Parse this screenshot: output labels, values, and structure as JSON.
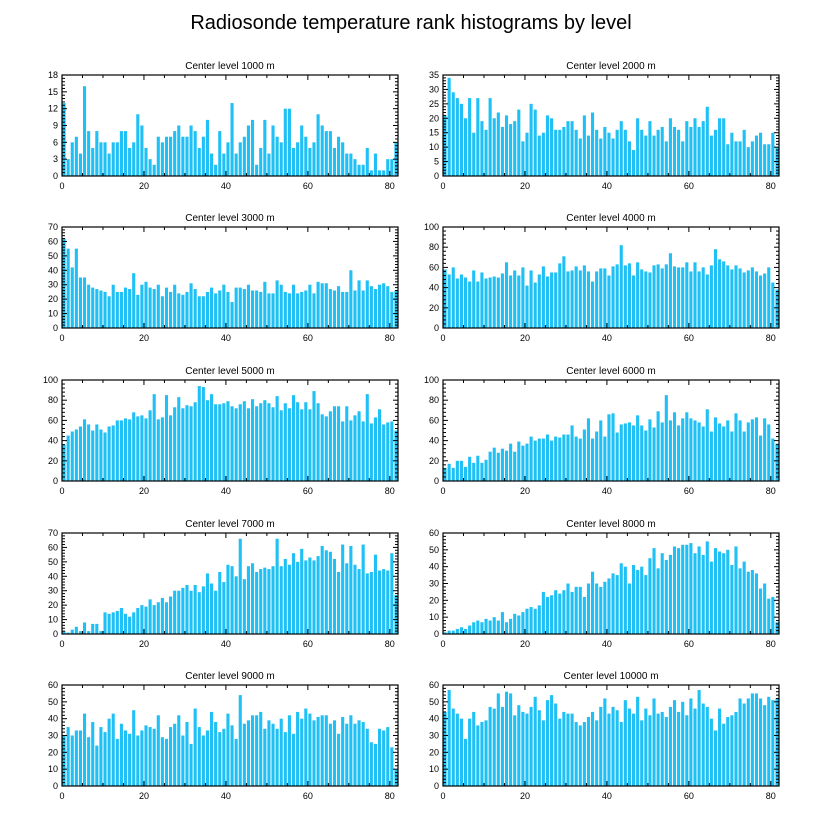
{
  "figure": {
    "title": "Radiosonde temperature rank histograms by level",
    "bar_color": "#1ec0f5",
    "frame_color": "#000000"
  },
  "chart_data": [
    {
      "type": "bar",
      "title": "Center level 1000 m",
      "xlim": [
        0,
        82
      ],
      "ylim": [
        0,
        18
      ],
      "xticks": [
        0,
        20,
        40,
        60,
        80
      ],
      "yticks": [
        0,
        3,
        6,
        9,
        12,
        15,
        18
      ],
      "values": [
        13,
        3,
        6,
        7,
        4,
        16,
        8,
        5,
        8,
        6,
        6,
        4,
        6,
        6,
        8,
        8,
        5,
        6,
        11,
        9,
        5,
        3,
        2,
        7,
        6,
        7,
        7,
        8,
        9,
        7,
        7,
        9,
        8,
        5,
        7,
        10,
        4,
        2,
        8,
        4,
        6,
        13,
        4,
        6,
        7,
        9,
        10,
        2,
        5,
        10,
        4,
        9,
        7,
        6,
        12,
        12,
        5,
        6,
        9,
        7,
        5,
        6,
        11,
        9,
        8,
        8,
        5,
        7,
        6,
        4,
        4,
        3,
        2,
        2,
        5,
        1,
        4,
        1,
        1,
        3,
        3,
        6
      ]
    },
    {
      "type": "bar",
      "title": "Center level 2000 m",
      "xlim": [
        0,
        82
      ],
      "ylim": [
        0,
        35
      ],
      "xticks": [
        0,
        20,
        40,
        60,
        80
      ],
      "yticks": [
        0,
        5,
        10,
        15,
        20,
        25,
        30,
        35
      ],
      "values": [
        21,
        34,
        29,
        27,
        25,
        20,
        27,
        15,
        27,
        19,
        16,
        27,
        20,
        22,
        17,
        21,
        18,
        19,
        23,
        12,
        15,
        25,
        23,
        14,
        15,
        21,
        20,
        16,
        16,
        17,
        19,
        19,
        16,
        13,
        21,
        14,
        22,
        16,
        13,
        17,
        15,
        13,
        16,
        19,
        16,
        12,
        9,
        20,
        16,
        14,
        19,
        14,
        16,
        17,
        12,
        20,
        17,
        16,
        12,
        19,
        17,
        20,
        17,
        19,
        24,
        14,
        16,
        20,
        20,
        11,
        15,
        12,
        12,
        16,
        10,
        12,
        14,
        15,
        11,
        11,
        15,
        10
      ]
    },
    {
      "type": "bar",
      "title": "Center level 3000 m",
      "xlim": [
        0,
        82
      ],
      "ylim": [
        0,
        70
      ],
      "xticks": [
        0,
        20,
        40,
        60,
        80
      ],
      "yticks": [
        0,
        10,
        20,
        30,
        40,
        50,
        60,
        70
      ],
      "values": [
        62,
        55,
        42,
        55,
        35,
        35,
        30,
        28,
        27,
        26,
        25,
        22,
        30,
        25,
        25,
        28,
        27,
        38,
        23,
        30,
        32,
        28,
        27,
        30,
        22,
        28,
        25,
        30,
        24,
        23,
        25,
        31,
        27,
        22,
        22,
        25,
        28,
        24,
        26,
        30,
        25,
        18,
        28,
        28,
        27,
        30,
        26,
        26,
        25,
        32,
        24,
        24,
        33,
        30,
        25,
        24,
        30,
        24,
        25,
        26,
        30,
        24,
        32,
        31,
        31,
        27,
        26,
        29,
        25,
        25,
        40,
        26,
        33,
        26,
        33,
        29,
        27,
        30,
        31,
        29,
        25,
        26
      ]
    },
    {
      "type": "bar",
      "title": "Center level 4000 m",
      "xlim": [
        0,
        82
      ],
      "ylim": [
        0,
        100
      ],
      "xticks": [
        0,
        20,
        40,
        60,
        80
      ],
      "yticks": [
        0,
        20,
        40,
        60,
        80,
        100
      ],
      "values": [
        58,
        53,
        60,
        49,
        53,
        50,
        46,
        57,
        46,
        55,
        49,
        50,
        51,
        50,
        54,
        65,
        52,
        57,
        52,
        60,
        42,
        57,
        45,
        53,
        61,
        51,
        55,
        55,
        64,
        71,
        56,
        57,
        61,
        57,
        62,
        56,
        46,
        56,
        59,
        59,
        52,
        61,
        63,
        82,
        62,
        64,
        52,
        65,
        58,
        56,
        55,
        62,
        63,
        59,
        63,
        74,
        61,
        60,
        60,
        65,
        56,
        65,
        56,
        60,
        53,
        62,
        78,
        68,
        66,
        62,
        58,
        62,
        59,
        55,
        57,
        60,
        56,
        52,
        54,
        60,
        45,
        38
      ]
    },
    {
      "type": "bar",
      "title": "Center level 5000 m",
      "xlim": [
        0,
        82
      ],
      "ylim": [
        0,
        100
      ],
      "xticks": [
        0,
        20,
        40,
        60,
        80
      ],
      "yticks": [
        0,
        20,
        40,
        60,
        80,
        100
      ],
      "values": [
        36,
        45,
        49,
        51,
        54,
        61,
        56,
        50,
        56,
        51,
        48,
        54,
        55,
        60,
        60,
        62,
        61,
        68,
        64,
        65,
        62,
        70,
        86,
        61,
        63,
        85,
        65,
        73,
        83,
        72,
        75,
        74,
        78,
        94,
        93,
        80,
        86,
        76,
        76,
        77,
        79,
        74,
        72,
        76,
        79,
        72,
        81,
        74,
        77,
        80,
        77,
        73,
        84,
        70,
        77,
        72,
        85,
        78,
        71,
        78,
        71,
        89,
        77,
        66,
        64,
        69,
        74,
        74,
        59,
        74,
        60,
        65,
        69,
        59,
        86,
        57,
        63,
        71,
        56,
        58,
        59,
        50
      ]
    },
    {
      "type": "bar",
      "title": "Center level 6000 m",
      "xlim": [
        0,
        82
      ],
      "ylim": [
        0,
        100
      ],
      "xticks": [
        0,
        20,
        40,
        60,
        80
      ],
      "yticks": [
        0,
        20,
        40,
        60,
        80,
        100
      ],
      "values": [
        13,
        17,
        13,
        20,
        20,
        14,
        24,
        18,
        25,
        18,
        21,
        29,
        33,
        28,
        32,
        30,
        37,
        29,
        39,
        35,
        37,
        44,
        40,
        42,
        42,
        46,
        40,
        44,
        43,
        46,
        46,
        55,
        44,
        42,
        51,
        62,
        42,
        49,
        60,
        44,
        66,
        67,
        48,
        56,
        57,
        58,
        55,
        65,
        55,
        50,
        61,
        53,
        69,
        58,
        85,
        60,
        68,
        55,
        62,
        68,
        62,
        60,
        58,
        54,
        71,
        49,
        63,
        57,
        54,
        60,
        49,
        67,
        60,
        49,
        58,
        61,
        63,
        45,
        62,
        56,
        42,
        37
      ]
    },
    {
      "type": "bar",
      "title": "Center level 7000 m",
      "xlim": [
        0,
        82
      ],
      "ylim": [
        0,
        70
      ],
      "xticks": [
        0,
        20,
        40,
        60,
        80
      ],
      "yticks": [
        0,
        10,
        20,
        30,
        40,
        50,
        60,
        70
      ],
      "values": [
        2,
        1,
        3,
        5,
        2,
        8,
        2,
        7,
        7,
        2,
        15,
        14,
        15,
        16,
        18,
        14,
        12,
        15,
        18,
        20,
        19,
        24,
        20,
        22,
        25,
        22,
        26,
        30,
        30,
        32,
        34,
        30,
        34,
        29,
        33,
        42,
        35,
        30,
        43,
        36,
        48,
        47,
        40,
        66,
        38,
        47,
        49,
        43,
        45,
        46,
        45,
        47,
        66,
        47,
        52,
        48,
        56,
        50,
        59,
        51,
        53,
        51,
        54,
        61,
        58,
        57,
        52,
        43,
        62,
        49,
        61,
        48,
        45,
        62,
        42,
        43,
        55,
        44,
        45,
        44,
        56,
        27
      ]
    },
    {
      "type": "bar",
      "title": "Center level 8000 m",
      "xlim": [
        0,
        82
      ],
      "ylim": [
        0,
        60
      ],
      "xticks": [
        0,
        20,
        40,
        60,
        80
      ],
      "yticks": [
        0,
        10,
        20,
        30,
        40,
        50,
        60
      ],
      "values": [
        1,
        2,
        2,
        3,
        4,
        3,
        5,
        7,
        8,
        7,
        9,
        8,
        10,
        8,
        13,
        7,
        9,
        12,
        11,
        13,
        15,
        16,
        15,
        17,
        25,
        22,
        23,
        26,
        24,
        26,
        30,
        25,
        28,
        28,
        22,
        30,
        37,
        30,
        28,
        31,
        33,
        36,
        35,
        42,
        40,
        30,
        41,
        38,
        40,
        35,
        45,
        51,
        39,
        48,
        44,
        47,
        52,
        51,
        53,
        53,
        54,
        48,
        52,
        47,
        55,
        43,
        51,
        49,
        48,
        50,
        41,
        52,
        39,
        43,
        37,
        38,
        36,
        27,
        30,
        21,
        22,
        7
      ]
    },
    {
      "type": "bar",
      "title": "Center level 9000 m",
      "xlim": [
        0,
        82
      ],
      "ylim": [
        0,
        60
      ],
      "xticks": [
        0,
        20,
        40,
        60,
        80
      ],
      "yticks": [
        0,
        10,
        20,
        30,
        40,
        50,
        60
      ],
      "values": [
        30,
        35,
        30,
        33,
        33,
        43,
        29,
        38,
        24,
        35,
        32,
        40,
        43,
        28,
        37,
        33,
        31,
        45,
        30,
        33,
        36,
        35,
        34,
        42,
        29,
        28,
        35,
        37,
        42,
        30,
        38,
        25,
        46,
        35,
        30,
        33,
        44,
        38,
        32,
        34,
        43,
        36,
        28,
        54,
        37,
        39,
        42,
        42,
        44,
        34,
        39,
        37,
        34,
        40,
        32,
        42,
        31,
        44,
        40,
        46,
        43,
        39,
        41,
        42,
        42,
        37,
        39,
        31,
        41,
        37,
        42,
        37,
        39,
        38,
        34,
        26,
        25,
        34,
        33,
        35,
        23,
        10
      ]
    },
    {
      "type": "bar",
      "title": "Center level 10000 m",
      "xlim": [
        0,
        82
      ],
      "ylim": [
        0,
        60
      ],
      "xticks": [
        0,
        20,
        40,
        60,
        80
      ],
      "yticks": [
        0,
        10,
        20,
        30,
        40,
        50,
        60
      ],
      "values": [
        44,
        57,
        46,
        43,
        40,
        28,
        40,
        44,
        36,
        38,
        39,
        47,
        46,
        55,
        47,
        56,
        55,
        42,
        48,
        44,
        43,
        47,
        53,
        45,
        39,
        51,
        54,
        49,
        40,
        44,
        43,
        43,
        38,
        36,
        38,
        41,
        44,
        39,
        47,
        52,
        43,
        47,
        45,
        38,
        51,
        46,
        43,
        53,
        39,
        46,
        42,
        52,
        43,
        44,
        41,
        47,
        51,
        44,
        50,
        42,
        52,
        46,
        57,
        49,
        47,
        40,
        33,
        46,
        37,
        41,
        42,
        44,
        52,
        49,
        52,
        55,
        55,
        52,
        48,
        53,
        51,
        52
      ]
    }
  ]
}
